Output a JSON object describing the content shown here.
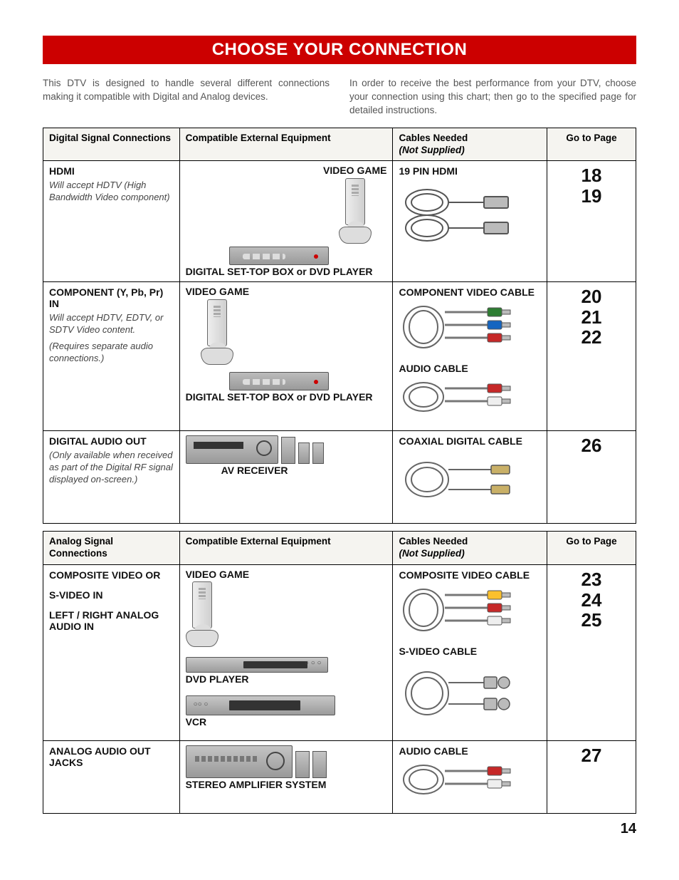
{
  "title": "CHOOSE YOUR CONNECTION",
  "intro": {
    "left": "This DTV is designed to handle several different connections making it compatible with Digital and Analog devices.",
    "right": "In order to receive the best performance from your DTV, choose your connection using this chart; then go to the specified page for detailed instructions."
  },
  "headers": {
    "digital_conn": "Digital Signal Connections",
    "analog_conn": "Analog Signal Connections",
    "equip": "Compatible External Equipment",
    "cables": "Cables Needed",
    "cables_sub": "(Not Supplied)",
    "goto": "Go to Page"
  },
  "digital_rows": [
    {
      "conn_title": "HDMI",
      "conn_desc": [
        "Will accept HDTV (High Bandwidth Video component)"
      ],
      "equipment": [
        {
          "label": "DIGITAL SET-TOP BOX or DVD PLAYER",
          "device": "settop"
        },
        {
          "label": "VIDEO GAME",
          "device": "console",
          "pos": "top-right"
        }
      ],
      "cables": [
        {
          "label": "19 PIN HDMI",
          "img": "hdmi"
        }
      ],
      "pages": [
        "18",
        "19"
      ]
    },
    {
      "conn_title": "COMPONENT (Y, Pb, Pr) IN",
      "conn_desc": [
        "Will accept HDTV, EDTV, or SDTV Video content.",
        "(Requires separate audio connections.)"
      ],
      "equipment": [
        {
          "label": "VIDEO GAME",
          "device": "console",
          "pos": "left"
        },
        {
          "label": "DIGITAL SET-TOP BOX or DVD PLAYER",
          "device": "settop",
          "pos": "right"
        }
      ],
      "cables": [
        {
          "label": "COMPONENT VIDEO CABLE",
          "img": "rca3",
          "colors": [
            "#2e7d32",
            "#1565c0",
            "#c62828"
          ]
        },
        {
          "label": "AUDIO CABLE",
          "img": "rca2",
          "colors": [
            "#c62828",
            "#eeeeee"
          ]
        }
      ],
      "pages": [
        "20",
        "21",
        "22"
      ]
    },
    {
      "conn_title": "DIGITAL AUDIO OUT",
      "conn_desc": [
        "(Only available when received as part of the Digital RF signal displayed on-screen.)"
      ],
      "equipment": [
        {
          "label": "AV RECEIVER",
          "device": "receiver"
        }
      ],
      "cables": [
        {
          "label": "COAXIAL DIGITAL CABLE",
          "img": "coax"
        }
      ],
      "pages": [
        "26"
      ]
    }
  ],
  "analog_rows": [
    {
      "conn_titles": [
        "COMPOSITE VIDEO OR",
        "S-VIDEO IN",
        "LEFT / RIGHT ANALOG AUDIO IN"
      ],
      "equipment": [
        {
          "label": "VIDEO GAME",
          "device": "console"
        },
        {
          "label": "DVD PLAYER",
          "device": "dvd"
        },
        {
          "label": "VCR",
          "device": "vcr"
        }
      ],
      "cables": [
        {
          "label": "COMPOSITE VIDEO CABLE",
          "img": "rca3",
          "colors": [
            "#fbc02d",
            "#c62828",
            "#eeeeee"
          ]
        },
        {
          "label": "S-VIDEO CABLE",
          "img": "svideo"
        }
      ],
      "pages": [
        "23",
        "24",
        "25"
      ]
    },
    {
      "conn_titles": [
        "ANALOG AUDIO OUT JACKS"
      ],
      "equipment": [
        {
          "label": "STEREO AMPLIFIER SYSTEM",
          "device": "amp"
        }
      ],
      "cables": [
        {
          "label": "AUDIO CABLE",
          "img": "rca2",
          "colors": [
            "#c62828",
            "#eeeeee"
          ]
        }
      ],
      "pages": [
        "27"
      ]
    }
  ],
  "footer_page": "14",
  "colors": {
    "band": "#cc0000",
    "header_bg": "#f5f4f0",
    "border": "#000000"
  }
}
